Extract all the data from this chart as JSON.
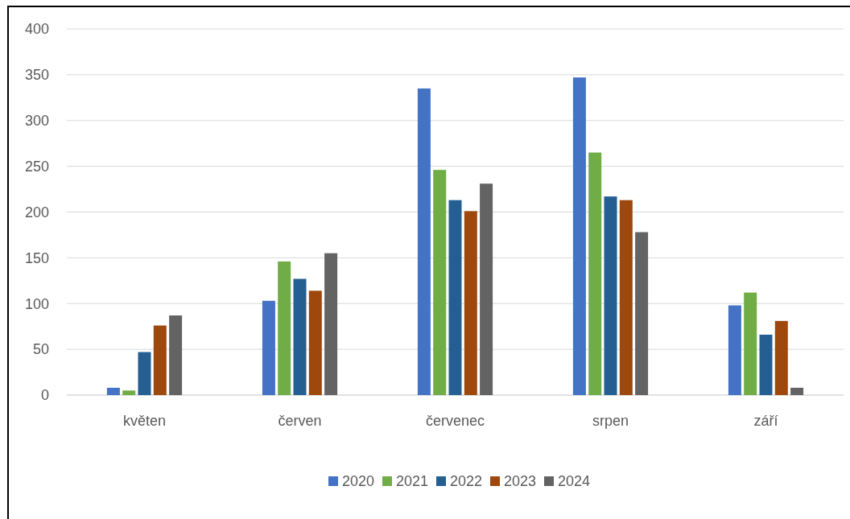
{
  "chart_data": {
    "type": "bar",
    "categories": [
      "květen",
      "červen",
      "červenec",
      "srpen",
      "září"
    ],
    "series": [
      {
        "name": "2020",
        "color": "#4472c4",
        "values": [
          8,
          103,
          335,
          347,
          98
        ]
      },
      {
        "name": "2021",
        "color": "#70ad47",
        "values": [
          5,
          146,
          246,
          265,
          112
        ]
      },
      {
        "name": "2022",
        "color": "#255e91",
        "values": [
          47,
          127,
          213,
          217,
          66
        ]
      },
      {
        "name": "2023",
        "color": "#9e480e",
        "values": [
          76,
          114,
          201,
          213,
          81
        ]
      },
      {
        "name": "2024",
        "color": "#636363",
        "values": [
          87,
          155,
          231,
          178,
          8
        ]
      }
    ],
    "ylim": [
      0,
      400
    ],
    "yticks": [
      0,
      50,
      100,
      150,
      200,
      250,
      300,
      350,
      400
    ],
    "grid": "y",
    "legend": "bottom"
  }
}
